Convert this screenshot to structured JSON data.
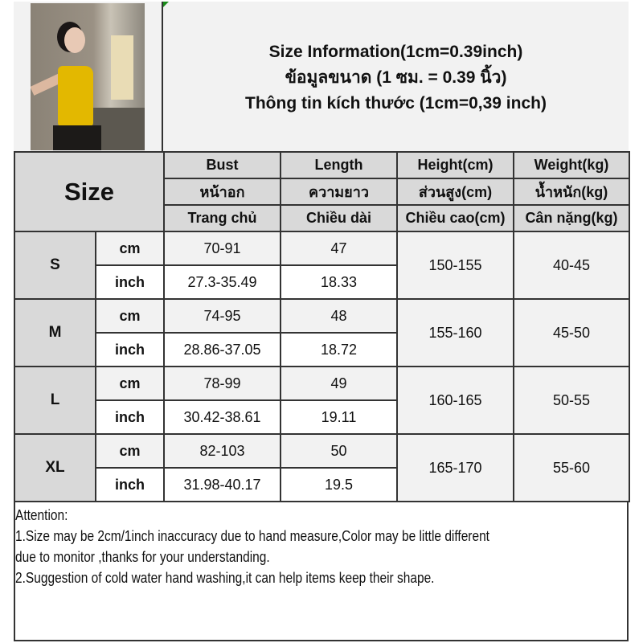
{
  "header": {
    "title_en": "Size Information(1cm=0.39inch)",
    "title_th": "ข้อมูลขนาด (1 ซม. = 0.39 นิ้ว)",
    "title_vi": "Thông tin kích thước (1cm=0,39 inch)"
  },
  "photo": {
    "description_icon": "model-photo"
  },
  "table": {
    "size_label": "Size",
    "columns": [
      {
        "en": "Bust",
        "th": "หน้าอก",
        "vi": "Trang chủ"
      },
      {
        "en": "Length",
        "th": "ความยาว",
        "vi": "Chiều dài"
      },
      {
        "en": "Height(cm)",
        "th": "ส่วนสูง(cm)",
        "vi": "Chiều cao(cm)"
      },
      {
        "en": "Weight(kg)",
        "th": "น้ำหนัก(kg)",
        "vi": "Cân nặng(kg)"
      }
    ],
    "rows": [
      {
        "size": "S",
        "cm_label": "cm",
        "inch_label": "inch",
        "bust_cm": "70-91",
        "length_cm": "47",
        "bust_inch": "27.3-35.49",
        "length_inch": "18.33",
        "height": "150-155",
        "weight": "40-45"
      },
      {
        "size": "M",
        "cm_label": "cm",
        "inch_label": "inch",
        "bust_cm": "74-95",
        "length_cm": "48",
        "bust_inch": "28.86-37.05",
        "length_inch": "18.72",
        "height": "155-160",
        "weight": "45-50"
      },
      {
        "size": "L",
        "cm_label": "cm",
        "inch_label": "inch",
        "bust_cm": "78-99",
        "length_cm": "49",
        "bust_inch": "30.42-38.61",
        "length_inch": "19.11",
        "height": "160-165",
        "weight": "50-55"
      },
      {
        "size": "XL",
        "cm_label": "cm",
        "inch_label": "inch",
        "bust_cm": "82-103",
        "length_cm": "50",
        "bust_inch": "31.98-40.17",
        "length_inch": "19.5",
        "height": "165-170",
        "weight": "55-60"
      }
    ]
  },
  "attention": {
    "heading": "Attention:",
    "line1": "1.Size may be 2cm/1inch inaccuracy due to hand measure,Color may be little different",
    "line1b": "due to monitor ,thanks for your understanding.",
    "line2": "2.Suggestion of cold water hand washing,it can help items keep their shape."
  },
  "colors": {
    "header_gray": "#d9d9d9",
    "light_gray": "#f2f2f2",
    "border": "#333333"
  }
}
